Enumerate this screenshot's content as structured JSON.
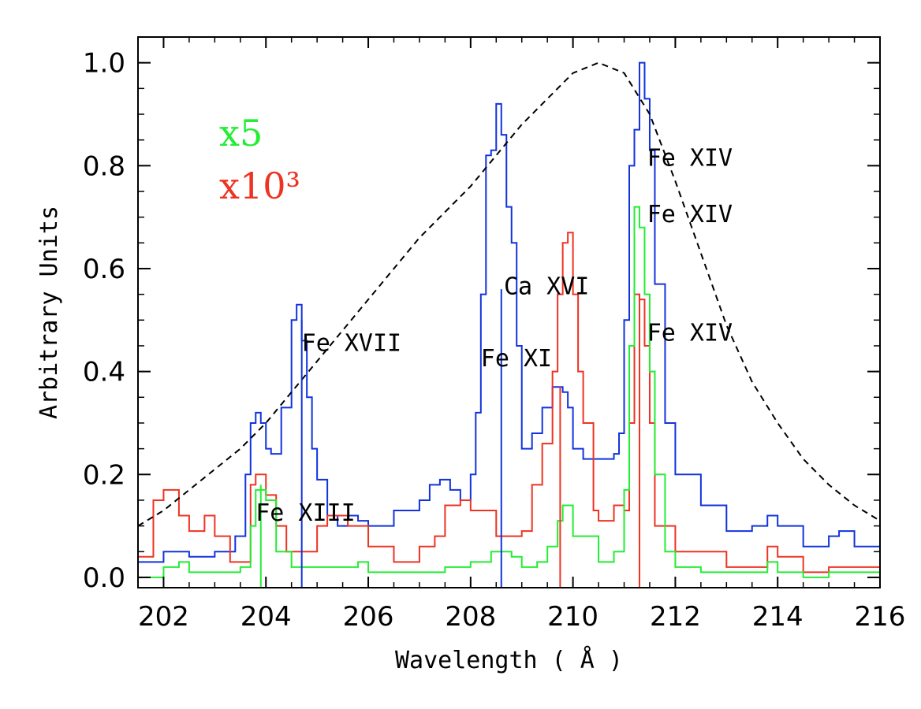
{
  "chart_data": {
    "type": "line",
    "title": "",
    "xlabel": "Wavelength ( Å )",
    "ylabel": "Arbitrary Units",
    "xlim": [
      201.5,
      216.0
    ],
    "ylim": [
      -0.02,
      1.05
    ],
    "x_ticks": [
      202,
      204,
      206,
      208,
      210,
      212,
      214,
      216
    ],
    "y_ticks": [
      0.0,
      0.2,
      0.4,
      0.6,
      0.8,
      1.0
    ],
    "x_tick_labels": [
      "202",
      "204",
      "206",
      "208",
      "210",
      "212",
      "214",
      "216"
    ],
    "y_tick_labels": [
      "0.0",
      "0.2",
      "0.4",
      "0.6",
      "0.8",
      "1.0"
    ],
    "grid": false,
    "legend": {
      "placement": "top-left",
      "entries": [
        {
          "text": "x5",
          "color": "#22ee33"
        },
        {
          "text": "x10³",
          "color": "#ee3322"
        }
      ]
    },
    "series": [
      {
        "color": "#1133dd",
        "style": "step",
        "x": [
          201.5,
          202.0,
          202.5,
          203.0,
          203.4,
          203.6,
          203.7,
          203.8,
          203.9,
          204.0,
          204.1,
          204.3,
          204.5,
          204.6,
          204.7,
          204.8,
          204.9,
          205.0,
          205.2,
          205.4,
          205.6,
          205.8,
          206.0,
          206.5,
          207.0,
          207.2,
          207.4,
          207.6,
          207.8,
          208.0,
          208.1,
          208.2,
          208.3,
          208.4,
          208.5,
          208.6,
          208.7,
          208.8,
          208.9,
          209.0,
          209.2,
          209.4,
          209.6,
          209.8,
          209.9,
          210.0,
          210.2,
          210.5,
          210.8,
          210.9,
          211.0,
          211.1,
          211.2,
          211.3,
          211.4,
          211.5,
          211.6,
          211.8,
          212.0,
          212.5,
          213.0,
          213.5,
          213.8,
          214.0,
          214.5,
          215.0,
          215.2,
          215.5,
          216.0
        ],
        "y": [
          0.03,
          0.05,
          0.04,
          0.05,
          0.08,
          0.2,
          0.3,
          0.32,
          0.3,
          0.25,
          0.24,
          0.33,
          0.5,
          0.53,
          0.46,
          0.35,
          0.25,
          0.19,
          0.12,
          0.1,
          0.12,
          0.11,
          0.1,
          0.13,
          0.15,
          0.18,
          0.19,
          0.17,
          0.15,
          0.2,
          0.32,
          0.55,
          0.82,
          0.83,
          0.92,
          0.86,
          0.72,
          0.65,
          0.45,
          0.25,
          0.28,
          0.33,
          0.37,
          0.36,
          0.33,
          0.25,
          0.23,
          0.23,
          0.24,
          0.28,
          0.5,
          0.8,
          0.87,
          1.0,
          0.93,
          0.83,
          0.57,
          0.3,
          0.2,
          0.14,
          0.09,
          0.1,
          0.12,
          0.1,
          0.06,
          0.08,
          0.09,
          0.06,
          0.03
        ]
      },
      {
        "color": "#ee3322",
        "style": "step",
        "x": [
          201.5,
          201.8,
          202.0,
          202.3,
          202.5,
          202.8,
          203.0,
          203.3,
          203.5,
          203.7,
          203.8,
          204.0,
          204.2,
          204.4,
          204.6,
          205.0,
          205.2,
          205.6,
          206.0,
          206.5,
          207.0,
          207.3,
          207.5,
          207.8,
          208.0,
          208.5,
          209.0,
          209.2,
          209.4,
          209.6,
          209.7,
          209.8,
          209.9,
          210.0,
          210.1,
          210.2,
          210.4,
          210.5,
          210.8,
          211.0,
          211.1,
          211.2,
          211.3,
          211.4,
          211.5,
          211.6,
          212.0,
          212.5,
          213.0,
          213.5,
          213.8,
          214.0,
          214.5,
          215.0,
          215.5,
          216.0
        ],
        "y": [
          0.04,
          0.15,
          0.17,
          0.12,
          0.09,
          0.12,
          0.08,
          0.03,
          0.03,
          0.18,
          0.2,
          0.16,
          0.1,
          0.05,
          0.05,
          0.1,
          0.12,
          0.1,
          0.06,
          0.03,
          0.06,
          0.08,
          0.14,
          0.15,
          0.13,
          0.08,
          0.09,
          0.18,
          0.26,
          0.4,
          0.55,
          0.65,
          0.67,
          0.55,
          0.4,
          0.3,
          0.13,
          0.11,
          0.14,
          0.13,
          0.3,
          0.55,
          0.54,
          0.45,
          0.3,
          0.1,
          0.05,
          0.05,
          0.02,
          0.02,
          0.06,
          0.04,
          0.01,
          0.02,
          0.02,
          0.0
        ]
      },
      {
        "color": "#22ee33",
        "style": "step",
        "x": [
          201.5,
          202.0,
          202.3,
          202.5,
          203.0,
          203.5,
          203.7,
          203.8,
          204.0,
          204.2,
          204.5,
          205.0,
          205.5,
          205.8,
          206.0,
          206.5,
          207.0,
          207.5,
          208.0,
          208.4,
          208.6,
          208.8,
          209.0,
          209.3,
          209.5,
          209.7,
          209.8,
          210.0,
          210.5,
          210.8,
          211.0,
          211.1,
          211.2,
          211.3,
          211.4,
          211.5,
          211.6,
          211.8,
          212.0,
          212.5,
          213.0,
          213.5,
          213.8,
          214.0,
          214.5,
          215.0,
          215.5,
          216.0
        ],
        "y": [
          0.0,
          0.02,
          0.03,
          0.01,
          0.01,
          0.02,
          0.1,
          0.17,
          0.15,
          0.05,
          0.02,
          0.02,
          0.02,
          0.03,
          0.01,
          0.01,
          0.01,
          0.02,
          0.03,
          0.05,
          0.05,
          0.04,
          0.02,
          0.03,
          0.06,
          0.11,
          0.14,
          0.08,
          0.03,
          0.05,
          0.17,
          0.45,
          0.72,
          0.68,
          0.55,
          0.4,
          0.2,
          0.05,
          0.02,
          0.01,
          0.01,
          0.01,
          0.03,
          0.01,
          0.0,
          0.01,
          0.01,
          0.0
        ]
      },
      {
        "color": "#000000",
        "style": "dashed",
        "x": [
          201.5,
          202.0,
          202.5,
          203.0,
          203.5,
          204.0,
          204.5,
          205.0,
          205.5,
          206.0,
          206.5,
          207.0,
          207.5,
          208.0,
          208.5,
          209.0,
          209.5,
          210.0,
          210.5,
          211.0,
          211.5,
          212.0,
          212.5,
          213.0,
          213.5,
          214.0,
          214.5,
          215.0,
          215.5,
          216.0
        ],
        "y": [
          0.1,
          0.13,
          0.17,
          0.21,
          0.25,
          0.3,
          0.36,
          0.42,
          0.48,
          0.54,
          0.6,
          0.66,
          0.71,
          0.76,
          0.82,
          0.88,
          0.93,
          0.98,
          1.0,
          0.98,
          0.9,
          0.77,
          0.63,
          0.49,
          0.38,
          0.3,
          0.23,
          0.18,
          0.14,
          0.11
        ]
      }
    ],
    "vertical_lines": [
      {
        "x": 203.9,
        "y": 0.18,
        "color": "#22ee33"
      },
      {
        "x": 204.7,
        "y": 0.5,
        "color": "#1133dd"
      },
      {
        "x": 208.6,
        "y": 0.56,
        "color": "#1133dd"
      },
      {
        "x": 209.75,
        "y": 0.37,
        "color": "#ee3322"
      },
      {
        "x": 211.3,
        "y": 0.55,
        "color": "#ee3322"
      }
    ],
    "annotations": [
      {
        "text": "Fe XIII",
        "x": 203.8,
        "y": 0.11
      },
      {
        "text": "Fe XVII",
        "x": 204.7,
        "y": 0.44
      },
      {
        "text": "Fe XI",
        "x": 208.2,
        "y": 0.41
      },
      {
        "text": "Ca XVI",
        "x": 208.65,
        "y": 0.55
      },
      {
        "text": "Fe XIV",
        "x": 211.45,
        "y": 0.8
      },
      {
        "text": "Fe XIV",
        "x": 211.45,
        "y": 0.69
      },
      {
        "text": "Fe XIV",
        "x": 211.45,
        "y": 0.46
      }
    ]
  }
}
